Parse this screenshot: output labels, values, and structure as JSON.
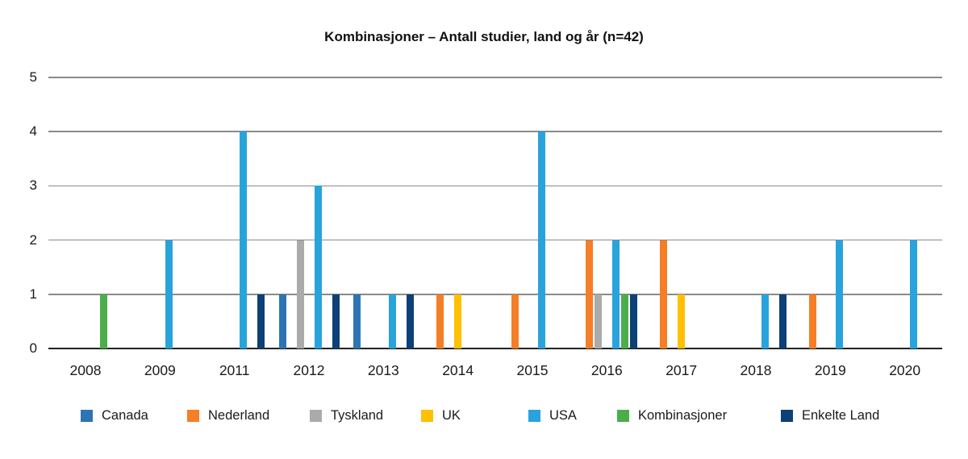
{
  "chart_data": {
    "type": "bar",
    "title": "Kombinasjoner – Antall studier, land og år (n=42)",
    "xlabel": "",
    "ylabel": "",
    "ylim": [
      0,
      5
    ],
    "yticks": [
      0,
      1,
      2,
      3,
      4,
      5
    ],
    "grid": true,
    "legend_position": "bottom",
    "categories": [
      "2008",
      "2009",
      "2011",
      "2012",
      "2013",
      "2014",
      "2015",
      "2016",
      "2017",
      "2018",
      "2019",
      "2020"
    ],
    "series": [
      {
        "name": "Canada",
        "color": "#2E74B5",
        "values": [
          0,
          0,
          0,
          1,
          1,
          0,
          0,
          0,
          0,
          0,
          0,
          0
        ]
      },
      {
        "name": "Nederland",
        "color": "#F57E27",
        "values": [
          0,
          0,
          0,
          0,
          0,
          1,
          1,
          2,
          2,
          0,
          1,
          0
        ]
      },
      {
        "name": "Tyskland",
        "color": "#ABABAB",
        "values": [
          0,
          0,
          0,
          2,
          0,
          0,
          0,
          1,
          0,
          0,
          0,
          0
        ]
      },
      {
        "name": "UK",
        "color": "#FFC000",
        "values": [
          0,
          0,
          0,
          0,
          0,
          1,
          0,
          0,
          1,
          0,
          0,
          0
        ]
      },
      {
        "name": "USA",
        "color": "#29A3DC",
        "values": [
          0,
          2,
          4,
          3,
          1,
          0,
          4,
          2,
          0,
          1,
          2,
          2
        ]
      },
      {
        "name": "Kombinasjoner",
        "color": "#4CAE4A",
        "values": [
          1,
          0,
          0,
          0,
          0,
          0,
          0,
          1,
          0,
          0,
          0,
          0
        ]
      },
      {
        "name": "Enkelte Land",
        "color": "#0C4077",
        "values": [
          0,
          0,
          1,
          1,
          1,
          0,
          0,
          1,
          0,
          1,
          0,
          0
        ]
      }
    ]
  }
}
